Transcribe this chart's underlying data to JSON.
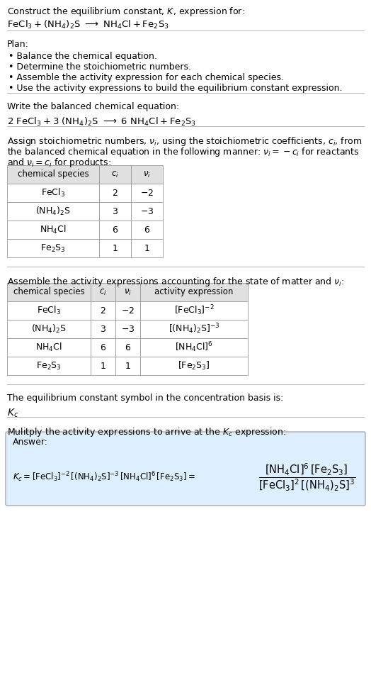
{
  "bg_color": "#ffffff",
  "separator_color": "#bbbbbb",
  "text_color": "#000000",
  "table_header_bg": "#e0e0e0",
  "answer_box_bg": "#ddeeff",
  "font_size": 9.0,
  "sections": {
    "s1_line1": "Construct the equilibrium constant, $K$, expression for:",
    "s1_line2_parts": [
      "$\\mathrm{FeCl_3}$",
      " + ",
      "$\\mathrm{(NH_4)_2S}$",
      " $\\longrightarrow$ ",
      "$\\mathrm{NH_4Cl}$",
      " + ",
      "$\\mathrm{Fe_2S_3}$"
    ],
    "plan_header": "Plan:",
    "plan_items": [
      "• Balance the chemical equation.",
      "• Determine the stoichiometric numbers.",
      "• Assemble the activity expression for each chemical species.",
      "• Use the activity expressions to build the equilibrium constant expression."
    ],
    "balanced_header": "Write the balanced chemical equation:",
    "stoich_para1": "Assign stoichiometric numbers, $\\nu_i$, using the stoichiometric coefficients, $c_i$, from",
    "stoich_para2": "the balanced chemical equation in the following manner: $\\nu_i = -c_i$ for reactants",
    "stoich_para3": "and $\\nu_i = c_i$ for products:",
    "activity_header": "Assemble the activity expressions accounting for the state of matter and $\\nu_i$:",
    "kc_header": "The equilibrium constant symbol in the concentration basis is:",
    "kc_symbol": "$K_c$",
    "multiply_header": "Mulitply the activity expressions to arrive at the $K_c$ expression:",
    "answer_label": "Answer:"
  },
  "table1_cols": [
    130,
    45,
    45
  ],
  "table1_headers": [
    "chemical species",
    "$c_i$",
    "$\\nu_i$"
  ],
  "table1_rows": [
    [
      "$\\mathrm{FeCl_3}$",
      "2",
      "$-2$"
    ],
    [
      "$\\mathrm{(NH_4)_2S}$",
      "3",
      "$-3$"
    ],
    [
      "$\\mathrm{NH_4Cl}$",
      "6",
      "6"
    ],
    [
      "$\\mathrm{Fe_2S_3}$",
      "1",
      "1"
    ]
  ],
  "table2_cols": [
    118,
    35,
    35,
    152
  ],
  "table2_headers": [
    "chemical species",
    "$c_i$",
    "$\\nu_i$",
    "activity expression"
  ],
  "table2_rows": [
    [
      "$\\mathrm{FeCl_3}$",
      "2",
      "$-2$",
      "$[\\mathrm{FeCl_3}]^{-2}$"
    ],
    [
      "$\\mathrm{(NH_4)_2S}$",
      "3",
      "$-3$",
      "$[(\\mathrm{NH_4})_2\\mathrm{S}]^{-3}$"
    ],
    [
      "$\\mathrm{NH_4Cl}$",
      "6",
      "6",
      "$[\\mathrm{NH_4Cl}]^6$"
    ],
    [
      "$\\mathrm{Fe_2S_3}$",
      "1",
      "1",
      "$[\\mathrm{Fe_2S_3}]$"
    ]
  ]
}
